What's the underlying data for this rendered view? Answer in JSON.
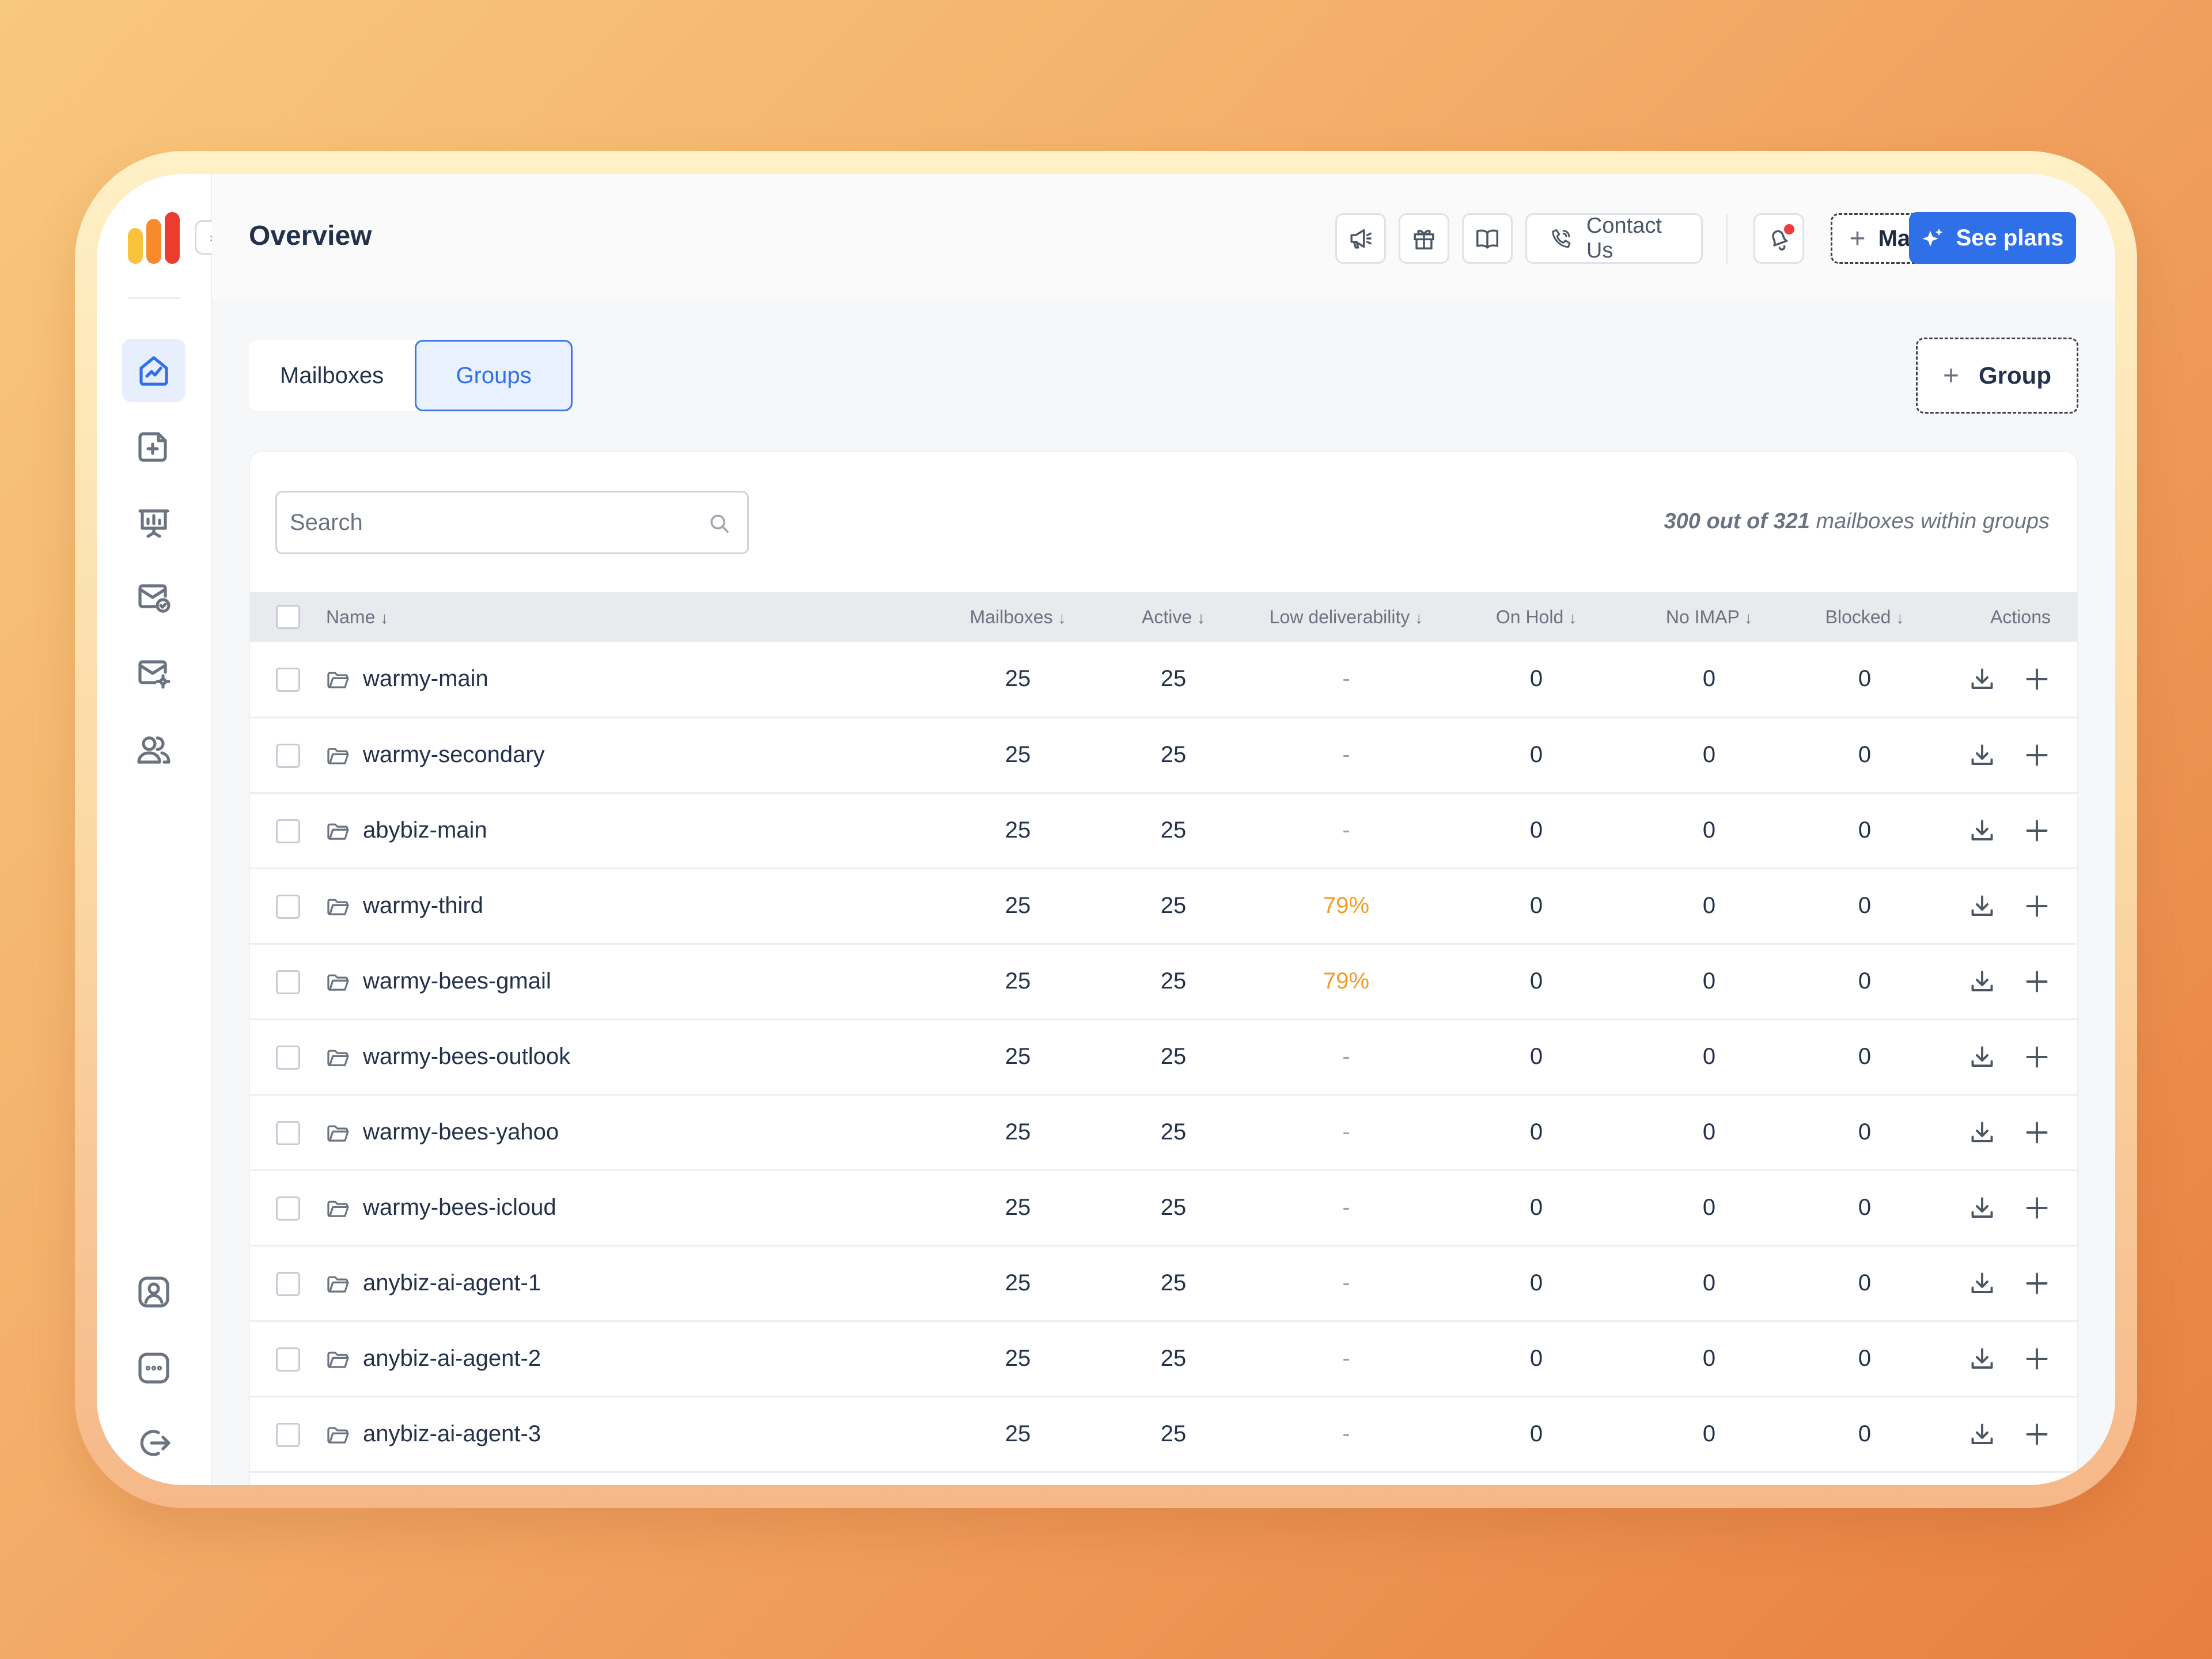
{
  "header": {
    "title": "Overview",
    "contact_label": "Contact Us",
    "mailbox_label": "Mailbox",
    "plans_label": "See plans"
  },
  "tabs": [
    {
      "label": "Mailboxes"
    },
    {
      "label": "Groups",
      "active": true
    }
  ],
  "group_button_label": "Group",
  "search": {
    "placeholder": "Search"
  },
  "summary": {
    "shown": "300 out of 321",
    "suffix": " mailboxes within groups"
  },
  "table": {
    "columns": [
      "Name",
      "Mailboxes",
      "Active",
      "Low deliverability",
      "On Hold",
      "No IMAP",
      "Blocked",
      "Actions"
    ],
    "sort_marker": "↓",
    "rows": [
      {
        "name": "warmy-main",
        "mailboxes": "25",
        "active": "25",
        "low": "-",
        "hold": "0",
        "imap": "0",
        "blocked": "0"
      },
      {
        "name": "warmy-secondary",
        "mailboxes": "25",
        "active": "25",
        "low": "-",
        "hold": "0",
        "imap": "0",
        "blocked": "0"
      },
      {
        "name": "abybiz-main",
        "mailboxes": "25",
        "active": "25",
        "low": "-",
        "hold": "0",
        "imap": "0",
        "blocked": "0"
      },
      {
        "name": "warmy-third",
        "mailboxes": "25",
        "active": "25",
        "low": "79%",
        "hold": "0",
        "imap": "0",
        "blocked": "0"
      },
      {
        "name": "warmy-bees-gmail",
        "mailboxes": "25",
        "active": "25",
        "low": "79%",
        "hold": "0",
        "imap": "0",
        "blocked": "0"
      },
      {
        "name": "warmy-bees-outlook",
        "mailboxes": "25",
        "active": "25",
        "low": "-",
        "hold": "0",
        "imap": "0",
        "blocked": "0"
      },
      {
        "name": "warmy-bees-yahoo",
        "mailboxes": "25",
        "active": "25",
        "low": "-",
        "hold": "0",
        "imap": "0",
        "blocked": "0"
      },
      {
        "name": "warmy-bees-icloud",
        "mailboxes": "25",
        "active": "25",
        "low": "-",
        "hold": "0",
        "imap": "0",
        "blocked": "0"
      },
      {
        "name": "anybiz-ai-agent-1",
        "mailboxes": "25",
        "active": "25",
        "low": "-",
        "hold": "0",
        "imap": "0",
        "blocked": "0"
      },
      {
        "name": "anybiz-ai-agent-2",
        "mailboxes": "25",
        "active": "25",
        "low": "-",
        "hold": "0",
        "imap": "0",
        "blocked": "0"
      },
      {
        "name": "anybiz-ai-agent-3",
        "mailboxes": "25",
        "active": "25",
        "low": "-",
        "hold": "0",
        "imap": "0",
        "blocked": "0"
      }
    ]
  },
  "colors": {
    "accent": "#2f6fe8",
    "warning": "#f59b23",
    "notification": "#ef3b3b"
  },
  "icons": {
    "sidebar": [
      "home-chart-icon",
      "add-document-icon",
      "presentation-icon",
      "mail-check-icon",
      "mail-settings-icon",
      "users-icon",
      "account-icon",
      "chat-icon",
      "logout-icon"
    ],
    "header": [
      "megaphone-icon",
      "gift-icon",
      "book-icon",
      "phone-icon",
      "bell-icon",
      "plus-icon",
      "sparkle-icon"
    ],
    "row": [
      "folder-icon",
      "download-icon",
      "plus-icon"
    ]
  }
}
